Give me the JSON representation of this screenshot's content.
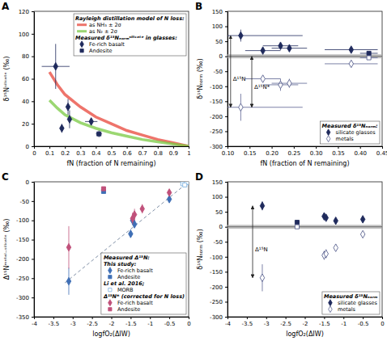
{
  "chart_data": [
    {
      "title": "A",
      "type": "scatter",
      "x_label": "fN (fraction of N remaining)",
      "y_label": "δ¹⁵Nˢⁱˡⁱᶜᵃᵗᵉ (‰)",
      "xlim": [
        0,
        1
      ],
      "xticks": [
        0,
        0.1,
        0.2,
        0.3,
        0.4,
        0.5,
        0.6,
        0.7,
        0.8,
        0.9,
        1
      ],
      "ylim": [
        0,
        120
      ],
      "yticks": [
        0,
        20,
        40,
        60,
        80,
        100,
        120
      ],
      "legend": "top-right",
      "series": [
        {
          "name": "as NH₃ ± 2σ",
          "group": "Rayleigh distillation model of N loss:",
          "type": "line",
          "color": "#e8463a",
          "x": [
            0.1,
            0.15,
            0.2,
            0.3,
            0.4,
            0.5,
            0.6,
            0.7,
            0.8,
            0.9,
            1
          ],
          "values": [
            66,
            55,
            46,
            35,
            26,
            20,
            14,
            10,
            6,
            3,
            0
          ]
        },
        {
          "name": "as N₂ ± 2σ",
          "type": "line",
          "color": "#7ac943",
          "x": [
            0.1,
            0.15,
            0.2,
            0.3,
            0.4,
            0.5,
            0.6,
            0.7,
            0.8,
            0.9,
            1
          ],
          "values": [
            41,
            34,
            28,
            21,
            16,
            12,
            9,
            6,
            4,
            2,
            0
          ]
        },
        {
          "name": "Fe-rich basalt",
          "group": "Measured δ¹⁵Nₙₒᵣₘˢⁱˡⁱᶜᵃᵗᵉ in glasses:",
          "marker": "diamond",
          "color": "#1f2a5c",
          "x": [
            0.14,
            0.18,
            0.22,
            0.23,
            0.37
          ],
          "values": [
            71,
            16,
            35,
            24,
            22
          ],
          "x_error": [
            0.09,
            0.01,
            0.01,
            0.01,
            0.04
          ],
          "y_error": [
            20,
            4,
            7,
            8,
            3
          ]
        },
        {
          "name": "Andesite",
          "marker": "square",
          "color": "#1f2a5c",
          "x": [
            0.42
          ],
          "values": [
            11
          ],
          "x_error": [
            0.02
          ],
          "y_error": [
            3
          ]
        }
      ]
    },
    {
      "title": "B",
      "type": "scatter",
      "x_label": "fN (fraction of N remaining)",
      "y_label": "δ¹⁵Nₙₒᵣₘ (‰)",
      "xlim": [
        0.1,
        0.45
      ],
      "xticks": [
        {
          "value": 0.1,
          "label": "0.10"
        },
        0.15,
        {
          "value": 0.2,
          "label": "0.20"
        },
        0.25,
        {
          "value": 0.3,
          "label": "0.30"
        },
        0.35,
        {
          "value": 0.4,
          "label": "0.40"
        },
        0.45
      ],
      "ylim": [
        -300,
        150
      ],
      "yticks": [
        -300,
        -250,
        -200,
        -150,
        -100,
        -50,
        0,
        50,
        100,
        150
      ],
      "reference_line": 0,
      "legend": "bottom-right",
      "series": [
        {
          "name": "silicate glasses",
          "group": "Measured δ¹⁵Nₙₒᵣₘ:",
          "marker": "diamond",
          "color": "#1f2a5c",
          "x": [
            0.13,
            0.18,
            0.22,
            0.24,
            0.38
          ],
          "values": [
            69,
            19,
            35,
            27,
            22
          ],
          "x_error": [
            0.14,
            0.04,
            0.04,
            0.04,
            0.06
          ],
          "y_error": [
            20,
            5,
            7,
            8,
            4
          ]
        },
        {
          "marker": "square",
          "color": "#1f2a5c",
          "x": [
            0.42
          ],
          "values": [
            10
          ],
          "x_error": [
            0.02
          ],
          "y_error": [
            3
          ]
        },
        {
          "name": "metals",
          "marker": "open-diamond",
          "color": "#5a6290",
          "x": [
            0.13,
            0.18,
            0.22,
            0.24,
            0.38
          ],
          "values": [
            -170,
            -75,
            -95,
            -90,
            -25
          ],
          "x_error": [
            0.14,
            0.04,
            0.04,
            0.04,
            0.06
          ],
          "y_error": [
            45,
            12,
            20,
            15,
            8
          ]
        },
        {
          "marker": "open-square",
          "color": "#5a6290",
          "x": [
            0.42
          ],
          "values": [
            -5
          ],
          "x_error": [
            0.02
          ],
          "y_error": [
            5
          ]
        }
      ],
      "annotations": [
        {
          "text": "Δ¹⁵N",
          "x": 0.107,
          "y_from": 69,
          "y_to": -170
        },
        {
          "text": "Δ¹⁵N*",
          "x": 0.155,
          "y_from": 0,
          "y_to": -170
        }
      ]
    },
    {
      "title": "C",
      "type": "scatter",
      "x_label": "logfO₂(ΔIW)",
      "y_label": "Δ¹⁵Nᵐᵉᵗᵃˡ⁻ˢⁱˡⁱᶜᵃᵗᵉ (‰)",
      "xlim": [
        -4,
        0
      ],
      "xticks": [
        -4,
        -3.5,
        -3,
        -2.5,
        -2,
        -1.5,
        -1,
        -0.5,
        0
      ],
      "ylim": [
        -350,
        0
      ],
      "yticks": [
        -350,
        -300,
        -250,
        -200,
        -150,
        -100,
        -50,
        0
      ],
      "legend": "bottom-right",
      "legend_title": "Measured Δ¹⁵N:",
      "series": [
        {
          "type": "line",
          "line_style": "dashed",
          "color": "#7f8fa6",
          "x": [
            -3.2,
            0
          ],
          "values": [
            -262,
            0
          ]
        },
        {
          "name": "Fe-rich basalt",
          "group": "This study:",
          "marker": "diamond",
          "color": "#3f6fb5",
          "x": [
            -3.1,
            -1.5,
            -1.45,
            -1.4,
            -0.5
          ],
          "values": [
            -258,
            -135,
            -100,
            -110,
            -45
          ],
          "y_error": [
            35,
            10,
            10,
            10,
            8
          ]
        },
        {
          "name": "Andesite",
          "marker": "square",
          "color": "#3f6fb5",
          "x": [
            -2.2
          ],
          "values": [
            -25
          ],
          "y_error": [
            5
          ]
        },
        {
          "name": "MORB",
          "group": "Li et al. 2016;",
          "marker": "open-square",
          "color": "#7fb2e0",
          "x": [
            -0.15,
            -0.05,
            -0.1
          ],
          "values": [
            -5,
            -2,
            -8
          ]
        },
        {
          "name": "Fe-rich basalt",
          "group": "Δ¹⁵N* (corrected for N loss)",
          "marker": "diamond",
          "color": "#c0507a",
          "x": [
            -3.1,
            -1.45,
            -1.4,
            -1.2,
            -0.5
          ],
          "values": [
            -170,
            -95,
            -85,
            -70,
            -28
          ],
          "y_error": [
            55,
            15,
            15,
            12,
            8
          ]
        },
        {
          "name": "Andesite",
          "marker": "square",
          "color": "#c0507a",
          "x": [
            -2.2
          ],
          "values": [
            -18
          ],
          "y_error": [
            5
          ]
        }
      ]
    },
    {
      "title": "D",
      "type": "scatter",
      "x_label": "logfO₂(ΔIW)",
      "y_label": "δ¹⁵Nₙₒᵣₘ (‰)",
      "xlim": [
        -4,
        0
      ],
      "xticks": [
        -4,
        -3.5,
        -3,
        -2.5,
        -2,
        -1.5,
        -1,
        -0.5,
        0
      ],
      "ylim": [
        -300,
        150
      ],
      "yticks": [
        -300,
        -250,
        -200,
        -150,
        -100,
        -50,
        0,
        50,
        100,
        150
      ],
      "reference_line": 0,
      "legend": "bottom-right",
      "series": [
        {
          "name": "silicate glasses",
          "group": "Measured δ¹⁵Nₙₒᵣₘ",
          "marker": "diamond",
          "color": "#1f2a5c",
          "x": [
            -3.1,
            -1.5,
            -1.45,
            -1.2,
            -0.5
          ],
          "values": [
            70,
            35,
            30,
            20,
            25
          ],
          "y_error": [
            15,
            6,
            6,
            5,
            5
          ]
        },
        {
          "marker": "square",
          "color": "#1f2a5c",
          "x": [
            -2.2
          ],
          "values": [
            15
          ]
        },
        {
          "name": "metals",
          "marker": "open-diamond",
          "color": "#5a6290",
          "x": [
            -3.1,
            -1.5,
            -1.45,
            -1.2,
            -0.5
          ],
          "values": [
            -170,
            -95,
            -90,
            -70,
            -25
          ],
          "y_error": [
            45,
            15,
            15,
            12,
            8
          ]
        },
        {
          "marker": "open-square",
          "color": "#5a6290",
          "x": [
            -2.2
          ],
          "values": [
            0
          ]
        }
      ],
      "annotations": [
        {
          "text": "Δ¹⁵N",
          "x": -3.35,
          "y_from": 70,
          "y_to": -170
        }
      ]
    }
  ]
}
